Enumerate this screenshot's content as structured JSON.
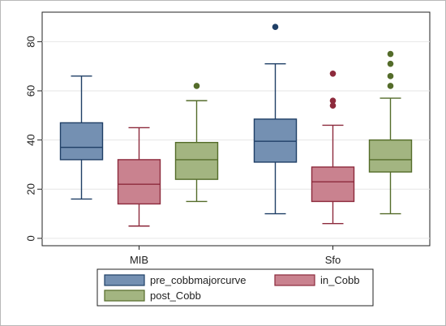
{
  "chart_data": {
    "type": "boxplot",
    "categories": [
      "MIB",
      "Sfo"
    ],
    "ylim": [
      -3,
      92
    ],
    "yticks": [
      0,
      20,
      40,
      60,
      80
    ],
    "grid": true,
    "legend_position": "bottom",
    "series": [
      {
        "name": "pre_cobbmajorcurve",
        "color": "#7490b2",
        "stroke": "#1f3f66",
        "boxes": [
          {
            "category": "MIB",
            "whisker_low": 16,
            "q1": 32,
            "median": 37,
            "q3": 47,
            "whisker_high": 66,
            "outliers": []
          },
          {
            "category": "Sfo",
            "whisker_low": 10,
            "q1": 31,
            "median": 39.5,
            "q3": 48.5,
            "whisker_high": 71,
            "outliers": [
              86
            ]
          }
        ]
      },
      {
        "name": "in_Cobb",
        "color": "#c9828f",
        "stroke": "#8d2a3c",
        "boxes": [
          {
            "category": "MIB",
            "whisker_low": 5,
            "q1": 14,
            "median": 22,
            "q3": 32,
            "whisker_high": 45,
            "outliers": []
          },
          {
            "category": "Sfo",
            "whisker_low": 6,
            "q1": 15,
            "median": 23,
            "q3": 29,
            "whisker_high": 46,
            "outliers": [
              54,
              56,
              67
            ]
          }
        ]
      },
      {
        "name": "post_Cobb",
        "color": "#a3b581",
        "stroke": "#546c2a",
        "boxes": [
          {
            "category": "MIB",
            "whisker_low": 15,
            "q1": 24,
            "median": 32,
            "q3": 39,
            "whisker_high": 56,
            "outliers": [
              62
            ]
          },
          {
            "category": "Sfo",
            "whisker_low": 10,
            "q1": 27,
            "median": 32,
            "q3": 40,
            "whisker_high": 57,
            "outliers": [
              62,
              66,
              71,
              75
            ]
          }
        ]
      }
    ]
  }
}
